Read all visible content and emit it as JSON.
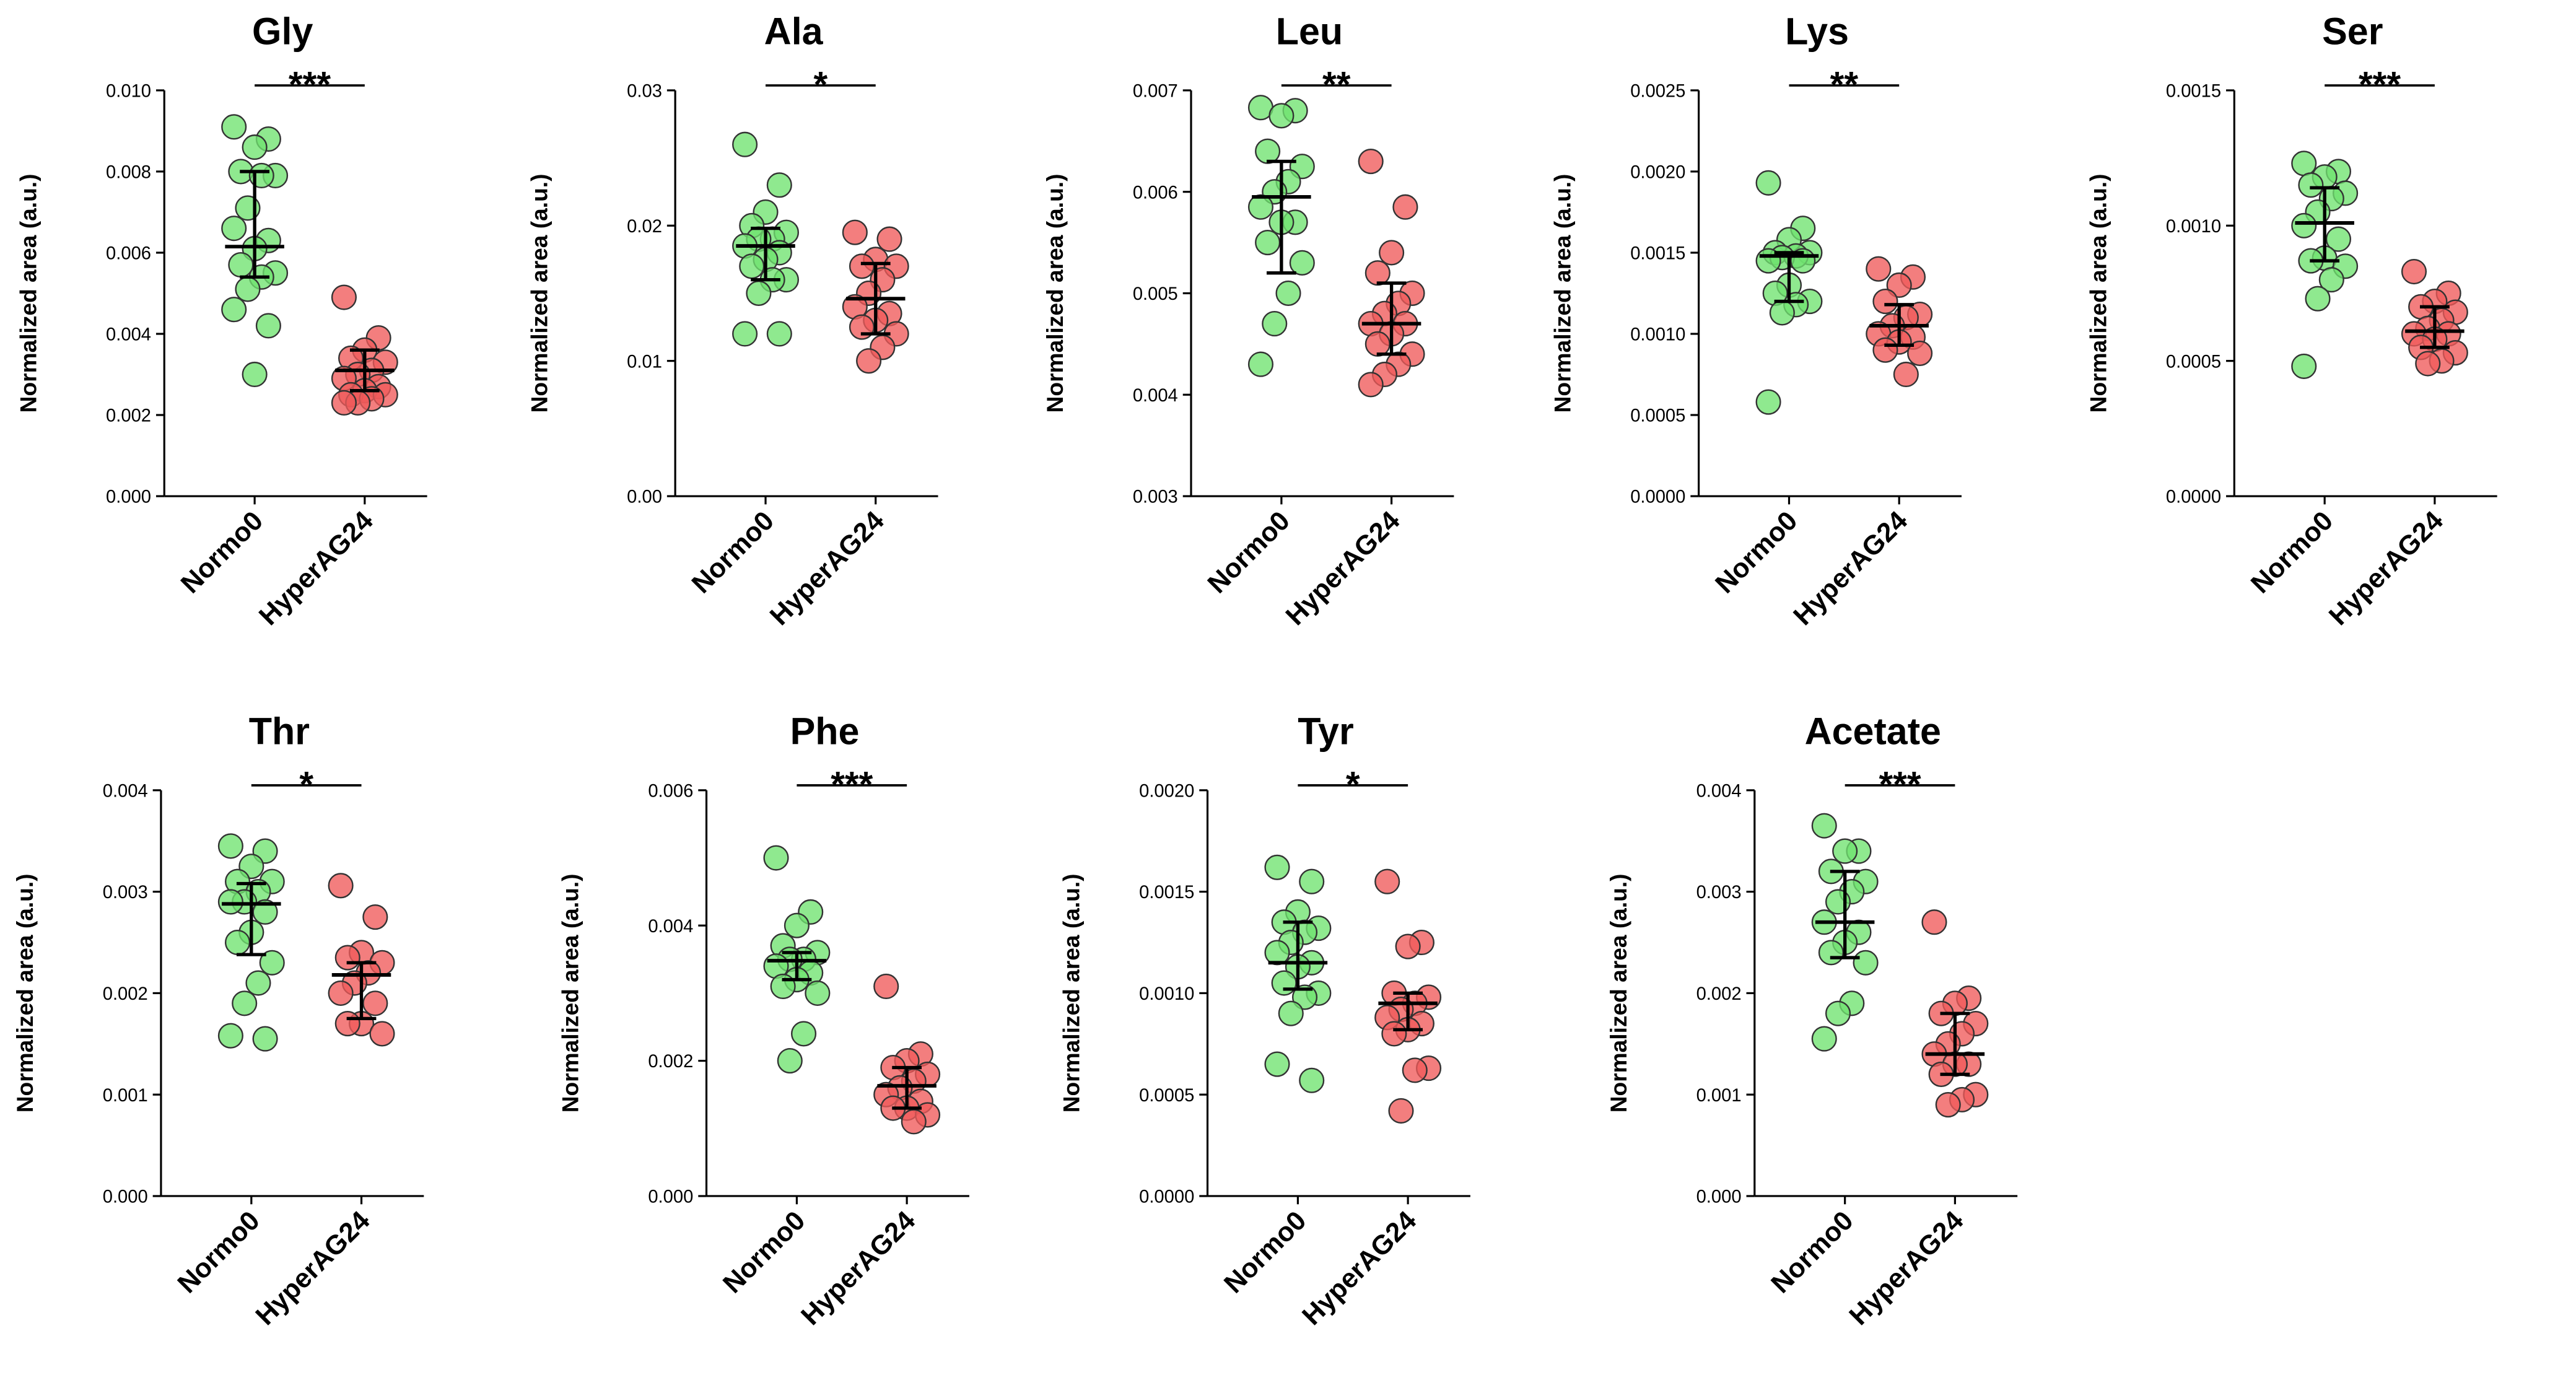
{
  "chart_data": [
    {
      "type": "strip",
      "title": "Gly",
      "ylabel": "Normalized area (a.u.)",
      "categories": [
        "Normo0",
        "HyperAG24"
      ],
      "significance": "***",
      "groups": [
        {
          "color": "#6fe36f",
          "values": [
            0.0091,
            0.0088,
            0.0086,
            0.008,
            0.0079,
            0.0079,
            0.0071,
            0.0066,
            0.0063,
            0.0061,
            0.0057,
            0.0055,
            0.0054,
            0.0051,
            0.0046,
            0.0042,
            0.003
          ],
          "median": 0.00615,
          "q1": 0.0054,
          "q3": 0.008
        },
        {
          "color": "#f05a5a",
          "values": [
            0.0049,
            0.0039,
            0.0036,
            0.0034,
            0.0033,
            0.0031,
            0.003,
            0.0029,
            0.0027,
            0.0026,
            0.0025,
            0.0025,
            0.0024,
            0.0023,
            0.0023
          ],
          "median": 0.0031,
          "q1": 0.0026,
          "q3": 0.0036
        }
      ],
      "ylim": [
        0,
        0.01
      ],
      "yticks": [
        {
          "value": 0,
          "label": "0.000"
        },
        {
          "value": 0.002,
          "label": "0.002"
        },
        {
          "value": 0.004,
          "label": "0.004"
        },
        {
          "value": 0.006,
          "label": "0.006"
        },
        {
          "value": 0.008,
          "label": "0.008"
        },
        {
          "value": 0.01,
          "label": "0.010"
        }
      ]
    },
    {
      "type": "strip",
      "title": "Ala",
      "ylabel": "Normalized area (a.u.)",
      "categories": [
        "Normo0",
        "HyperAG24"
      ],
      "significance": "*",
      "groups": [
        {
          "color": "#6fe36f",
          "values": [
            0.026,
            0.023,
            0.021,
            0.02,
            0.0195,
            0.019,
            0.019,
            0.0185,
            0.018,
            0.0175,
            0.017,
            0.016,
            0.016,
            0.015,
            0.012,
            0.012
          ],
          "median": 0.0185,
          "q1": 0.016,
          "q3": 0.0198
        },
        {
          "color": "#f05a5a",
          "values": [
            0.0195,
            0.019,
            0.0175,
            0.017,
            0.017,
            0.016,
            0.015,
            0.014,
            0.0135,
            0.013,
            0.0125,
            0.012,
            0.011,
            0.01
          ],
          "median": 0.0146,
          "q1": 0.012,
          "q3": 0.0172
        }
      ],
      "ylim": [
        0,
        0.03
      ],
      "yticks": [
        {
          "value": 0,
          "label": "0.00"
        },
        {
          "value": 0.01,
          "label": "0.01"
        },
        {
          "value": 0.02,
          "label": "0.02"
        },
        {
          "value": 0.03,
          "label": "0.03"
        }
      ]
    },
    {
      "type": "strip",
      "title": "Leu",
      "ylabel": "Normalized area (a.u.)",
      "categories": [
        "Normo0",
        "HyperAG24"
      ],
      "significance": "**",
      "groups": [
        {
          "color": "#6fe36f",
          "values": [
            0.00683,
            0.0068,
            0.00675,
            0.0064,
            0.00625,
            0.0061,
            0.006,
            0.00585,
            0.0057,
            0.0057,
            0.0055,
            0.0053,
            0.005,
            0.0047,
            0.0043
          ],
          "median": 0.00595,
          "q1": 0.0052,
          "q3": 0.0063
        },
        {
          "color": "#f05a5a",
          "values": [
            0.0063,
            0.00585,
            0.0054,
            0.0052,
            0.005,
            0.0049,
            0.0048,
            0.0047,
            0.0047,
            0.0046,
            0.0045,
            0.0044,
            0.0043,
            0.0042,
            0.0041
          ],
          "median": 0.0047,
          "q1": 0.0044,
          "q3": 0.0051
        }
      ],
      "ylim": [
        0.003,
        0.007
      ],
      "yticks": [
        {
          "value": 0.003,
          "label": "0.003"
        },
        {
          "value": 0.004,
          "label": "0.004"
        },
        {
          "value": 0.005,
          "label": "0.005"
        },
        {
          "value": 0.006,
          "label": "0.006"
        },
        {
          "value": 0.007,
          "label": "0.007"
        }
      ]
    },
    {
      "type": "strip",
      "title": "Lys",
      "ylabel": "Normalized area (a.u.)",
      "categories": [
        "Normo0",
        "HyperAG24"
      ],
      "significance": "**",
      "groups": [
        {
          "color": "#6fe36f",
          "values": [
            0.00193,
            0.00165,
            0.00158,
            0.0015,
            0.0015,
            0.00148,
            0.00147,
            0.00145,
            0.00145,
            0.0013,
            0.00125,
            0.0012,
            0.00118,
            0.00113,
            0.00058
          ],
          "median": 0.00148,
          "q1": 0.0012,
          "q3": 0.0015
        },
        {
          "color": "#f05a5a",
          "values": [
            0.0014,
            0.00135,
            0.0013,
            0.0012,
            0.00112,
            0.0011,
            0.00105,
            0.001,
            0.00098,
            0.00095,
            0.0009,
            0.00088,
            0.00075
          ],
          "median": 0.00105,
          "q1": 0.00093,
          "q3": 0.00118
        }
      ],
      "ylim": [
        0,
        0.0025
      ],
      "yticks": [
        {
          "value": 0,
          "label": "0.0000"
        },
        {
          "value": 0.0005,
          "label": "0.0005"
        },
        {
          "value": 0.001,
          "label": "0.0010"
        },
        {
          "value": 0.0015,
          "label": "0.0015"
        },
        {
          "value": 0.002,
          "label": "0.0020"
        },
        {
          "value": 0.0025,
          "label": "0.0025"
        }
      ]
    },
    {
      "type": "strip",
      "title": "Ser",
      "ylabel": "Normalized area (a.u.)",
      "categories": [
        "Normo0",
        "HyperAG24"
      ],
      "significance": "***",
      "groups": [
        {
          "color": "#6fe36f",
          "values": [
            0.00123,
            0.0012,
            0.00118,
            0.00115,
            0.00112,
            0.0011,
            0.00105,
            0.001,
            0.00095,
            0.00088,
            0.00087,
            0.00085,
            0.0008,
            0.00073,
            0.00048
          ],
          "median": 0.00101,
          "q1": 0.00087,
          "q3": 0.00114
        },
        {
          "color": "#f05a5a",
          "values": [
            0.00083,
            0.00075,
            0.00072,
            0.0007,
            0.00068,
            0.00065,
            0.00062,
            0.0006,
            0.0006,
            0.00058,
            0.00055,
            0.00053,
            0.0005,
            0.00049
          ],
          "median": 0.00061,
          "q1": 0.00055,
          "q3": 0.0007
        }
      ],
      "ylim": [
        0,
        0.0015
      ],
      "yticks": [
        {
          "value": 0,
          "label": "0.0000"
        },
        {
          "value": 0.0005,
          "label": "0.0005"
        },
        {
          "value": 0.001,
          "label": "0.0010"
        },
        {
          "value": 0.0015,
          "label": "0.0015"
        }
      ]
    },
    {
      "type": "strip",
      "title": "Thr",
      "ylabel": "Normalized area (a.u.)",
      "categories": [
        "Normo0",
        "HyperAG24"
      ],
      "significance": "*",
      "groups": [
        {
          "color": "#6fe36f",
          "values": [
            0.00345,
            0.0034,
            0.00325,
            0.0031,
            0.0031,
            0.003,
            0.0029,
            0.0029,
            0.0028,
            0.0026,
            0.0025,
            0.0023,
            0.0021,
            0.0019,
            0.00158,
            0.00155
          ],
          "median": 0.00288,
          "q1": 0.00238,
          "q3": 0.00308
        },
        {
          "color": "#f05a5a",
          "values": [
            0.00306,
            0.00275,
            0.0024,
            0.00235,
            0.0023,
            0.0022,
            0.0021,
            0.002,
            0.0019,
            0.0017,
            0.0017,
            0.0016
          ],
          "median": 0.00218,
          "q1": 0.00175,
          "q3": 0.0023
        }
      ],
      "ylim": [
        0,
        0.004
      ],
      "yticks": [
        {
          "value": 0,
          "label": "0.000"
        },
        {
          "value": 0.001,
          "label": "0.001"
        },
        {
          "value": 0.002,
          "label": "0.002"
        },
        {
          "value": 0.003,
          "label": "0.003"
        },
        {
          "value": 0.004,
          "label": "0.004"
        }
      ]
    },
    {
      "type": "strip",
      "title": "Phe",
      "ylabel": "Normalized area (a.u.)",
      "categories": [
        "Normo0",
        "HyperAG24"
      ],
      "significance": "***",
      "groups": [
        {
          "color": "#6fe36f",
          "values": [
            0.005,
            0.0042,
            0.004,
            0.0037,
            0.0036,
            0.0035,
            0.0035,
            0.0034,
            0.0033,
            0.0032,
            0.0031,
            0.003,
            0.0024,
            0.002
          ],
          "median": 0.00348,
          "q1": 0.0032,
          "q3": 0.0036
        },
        {
          "color": "#f05a5a",
          "values": [
            0.0031,
            0.0021,
            0.002,
            0.0019,
            0.0018,
            0.0017,
            0.0016,
            0.0015,
            0.0014,
            0.0013,
            0.0013,
            0.0012,
            0.0011
          ],
          "median": 0.00163,
          "q1": 0.0013,
          "q3": 0.0019
        }
      ],
      "ylim": [
        0,
        0.006
      ],
      "yticks": [
        {
          "value": 0,
          "label": "0.000"
        },
        {
          "value": 0.002,
          "label": "0.002"
        },
        {
          "value": 0.004,
          "label": "0.004"
        },
        {
          "value": 0.006,
          "label": "0.006"
        }
      ]
    },
    {
      "type": "strip",
      "title": "Tyr",
      "ylabel": "Normalized area (a.u.)",
      "categories": [
        "Normo0",
        "HyperAG24"
      ],
      "significance": "*",
      "groups": [
        {
          "color": "#6fe36f",
          "values": [
            0.00162,
            0.00155,
            0.0014,
            0.00135,
            0.00132,
            0.0013,
            0.00125,
            0.0012,
            0.00115,
            0.00113,
            0.00105,
            0.001,
            0.00098,
            0.0009,
            0.00065,
            0.00057
          ],
          "median": 0.00115,
          "q1": 0.00102,
          "q3": 0.00135
        },
        {
          "color": "#f05a5a",
          "values": [
            0.00155,
            0.00125,
            0.00123,
            0.001,
            0.00098,
            0.00095,
            0.00092,
            0.00088,
            0.00085,
            0.00082,
            0.0008,
            0.00063,
            0.00062,
            0.00042
          ],
          "median": 0.00095,
          "q1": 0.00082,
          "q3": 0.001
        }
      ],
      "ylim": [
        0,
        0.002
      ],
      "yticks": [
        {
          "value": 0,
          "label": "0.0000"
        },
        {
          "value": 0.0005,
          "label": "0.0005"
        },
        {
          "value": 0.001,
          "label": "0.0010"
        },
        {
          "value": 0.0015,
          "label": "0.0015"
        },
        {
          "value": 0.002,
          "label": "0.0020"
        }
      ]
    },
    {
      "type": "strip",
      "title": "Acetate",
      "ylabel": "Normalized area (a.u.)",
      "categories": [
        "Normo0",
        "HyperAG24"
      ],
      "significance": "***",
      "groups": [
        {
          "color": "#6fe36f",
          "values": [
            0.00365,
            0.0034,
            0.0034,
            0.0032,
            0.0031,
            0.003,
            0.0029,
            0.0027,
            0.0026,
            0.0025,
            0.0024,
            0.0023,
            0.0019,
            0.0018,
            0.00155
          ],
          "median": 0.0027,
          "q1": 0.00235,
          "q3": 0.0032
        },
        {
          "color": "#f05a5a",
          "values": [
            0.0027,
            0.00195,
            0.0019,
            0.0018,
            0.0017,
            0.0016,
            0.0015,
            0.0014,
            0.0013,
            0.0013,
            0.0012,
            0.001,
            0.00095,
            0.0009
          ],
          "median": 0.0014,
          "q1": 0.0012,
          "q3": 0.0018
        }
      ],
      "ylim": [
        0,
        0.004
      ],
      "yticks": [
        {
          "value": 0,
          "label": "0.000"
        },
        {
          "value": 0.001,
          "label": "0.001"
        },
        {
          "value": 0.002,
          "label": "0.002"
        },
        {
          "value": 0.003,
          "label": "0.003"
        },
        {
          "value": 0.004,
          "label": "0.004"
        }
      ]
    }
  ]
}
